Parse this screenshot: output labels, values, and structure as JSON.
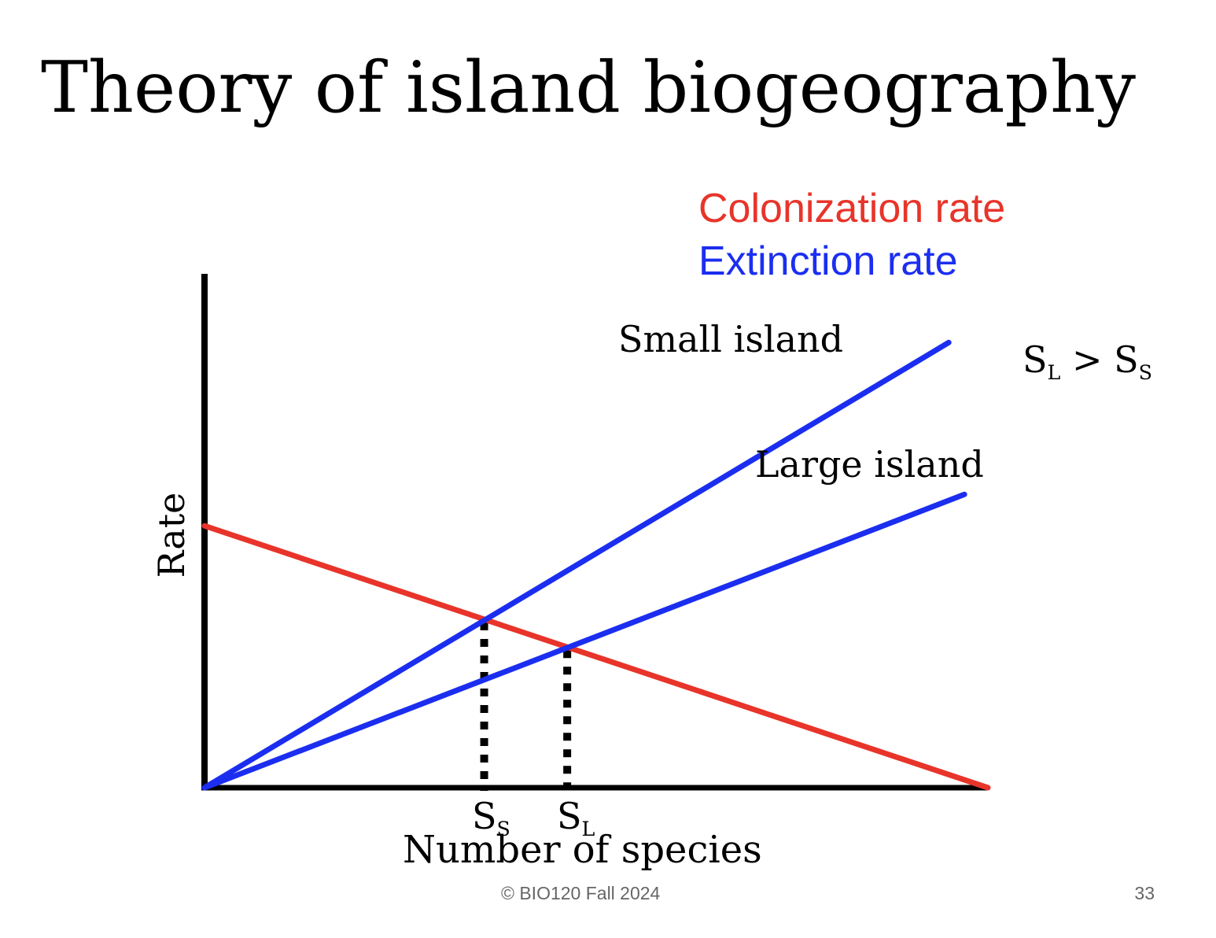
{
  "title": "Theory of island biogeography",
  "legend": {
    "colonization": "Colonization rate",
    "extinction": "Extinction rate"
  },
  "colors": {
    "colonization": "#e8342a",
    "extinction": "#1b2ef0",
    "axis": "#000000"
  },
  "chart_data": {
    "type": "line",
    "ylabel": "Rate",
    "xlabel": "Number of species",
    "grid": false,
    "colonization": {
      "label": "Colonization rate",
      "points": [
        [
          0,
          1.0
        ],
        [
          1.0,
          0.0
        ]
      ]
    },
    "extinction": [
      {
        "label": "Small island",
        "points": [
          [
            0,
            0.0
          ],
          [
            0.95,
            1.7
          ]
        ]
      },
      {
        "label": "Large island",
        "points": [
          [
            0,
            0.0
          ],
          [
            0.97,
            1.12
          ]
        ]
      }
    ],
    "equilibria": [
      {
        "label": "S",
        "sub": "S",
        "x": 0.357,
        "y": 0.643
      },
      {
        "label": "S",
        "sub": "L",
        "x": 0.463,
        "y": 0.537
      }
    ],
    "xlim": [
      0,
      1
    ],
    "ylim": [
      0,
      1.86
    ]
  },
  "annotations": {
    "small_island": "Small island",
    "large_island": "Large island",
    "relation": {
      "left": "S",
      "left_sub": "L",
      "operator": ">",
      "right": "S",
      "right_sub": "S"
    }
  },
  "footer": "© BIO120 Fall 2024",
  "page_number": "33"
}
